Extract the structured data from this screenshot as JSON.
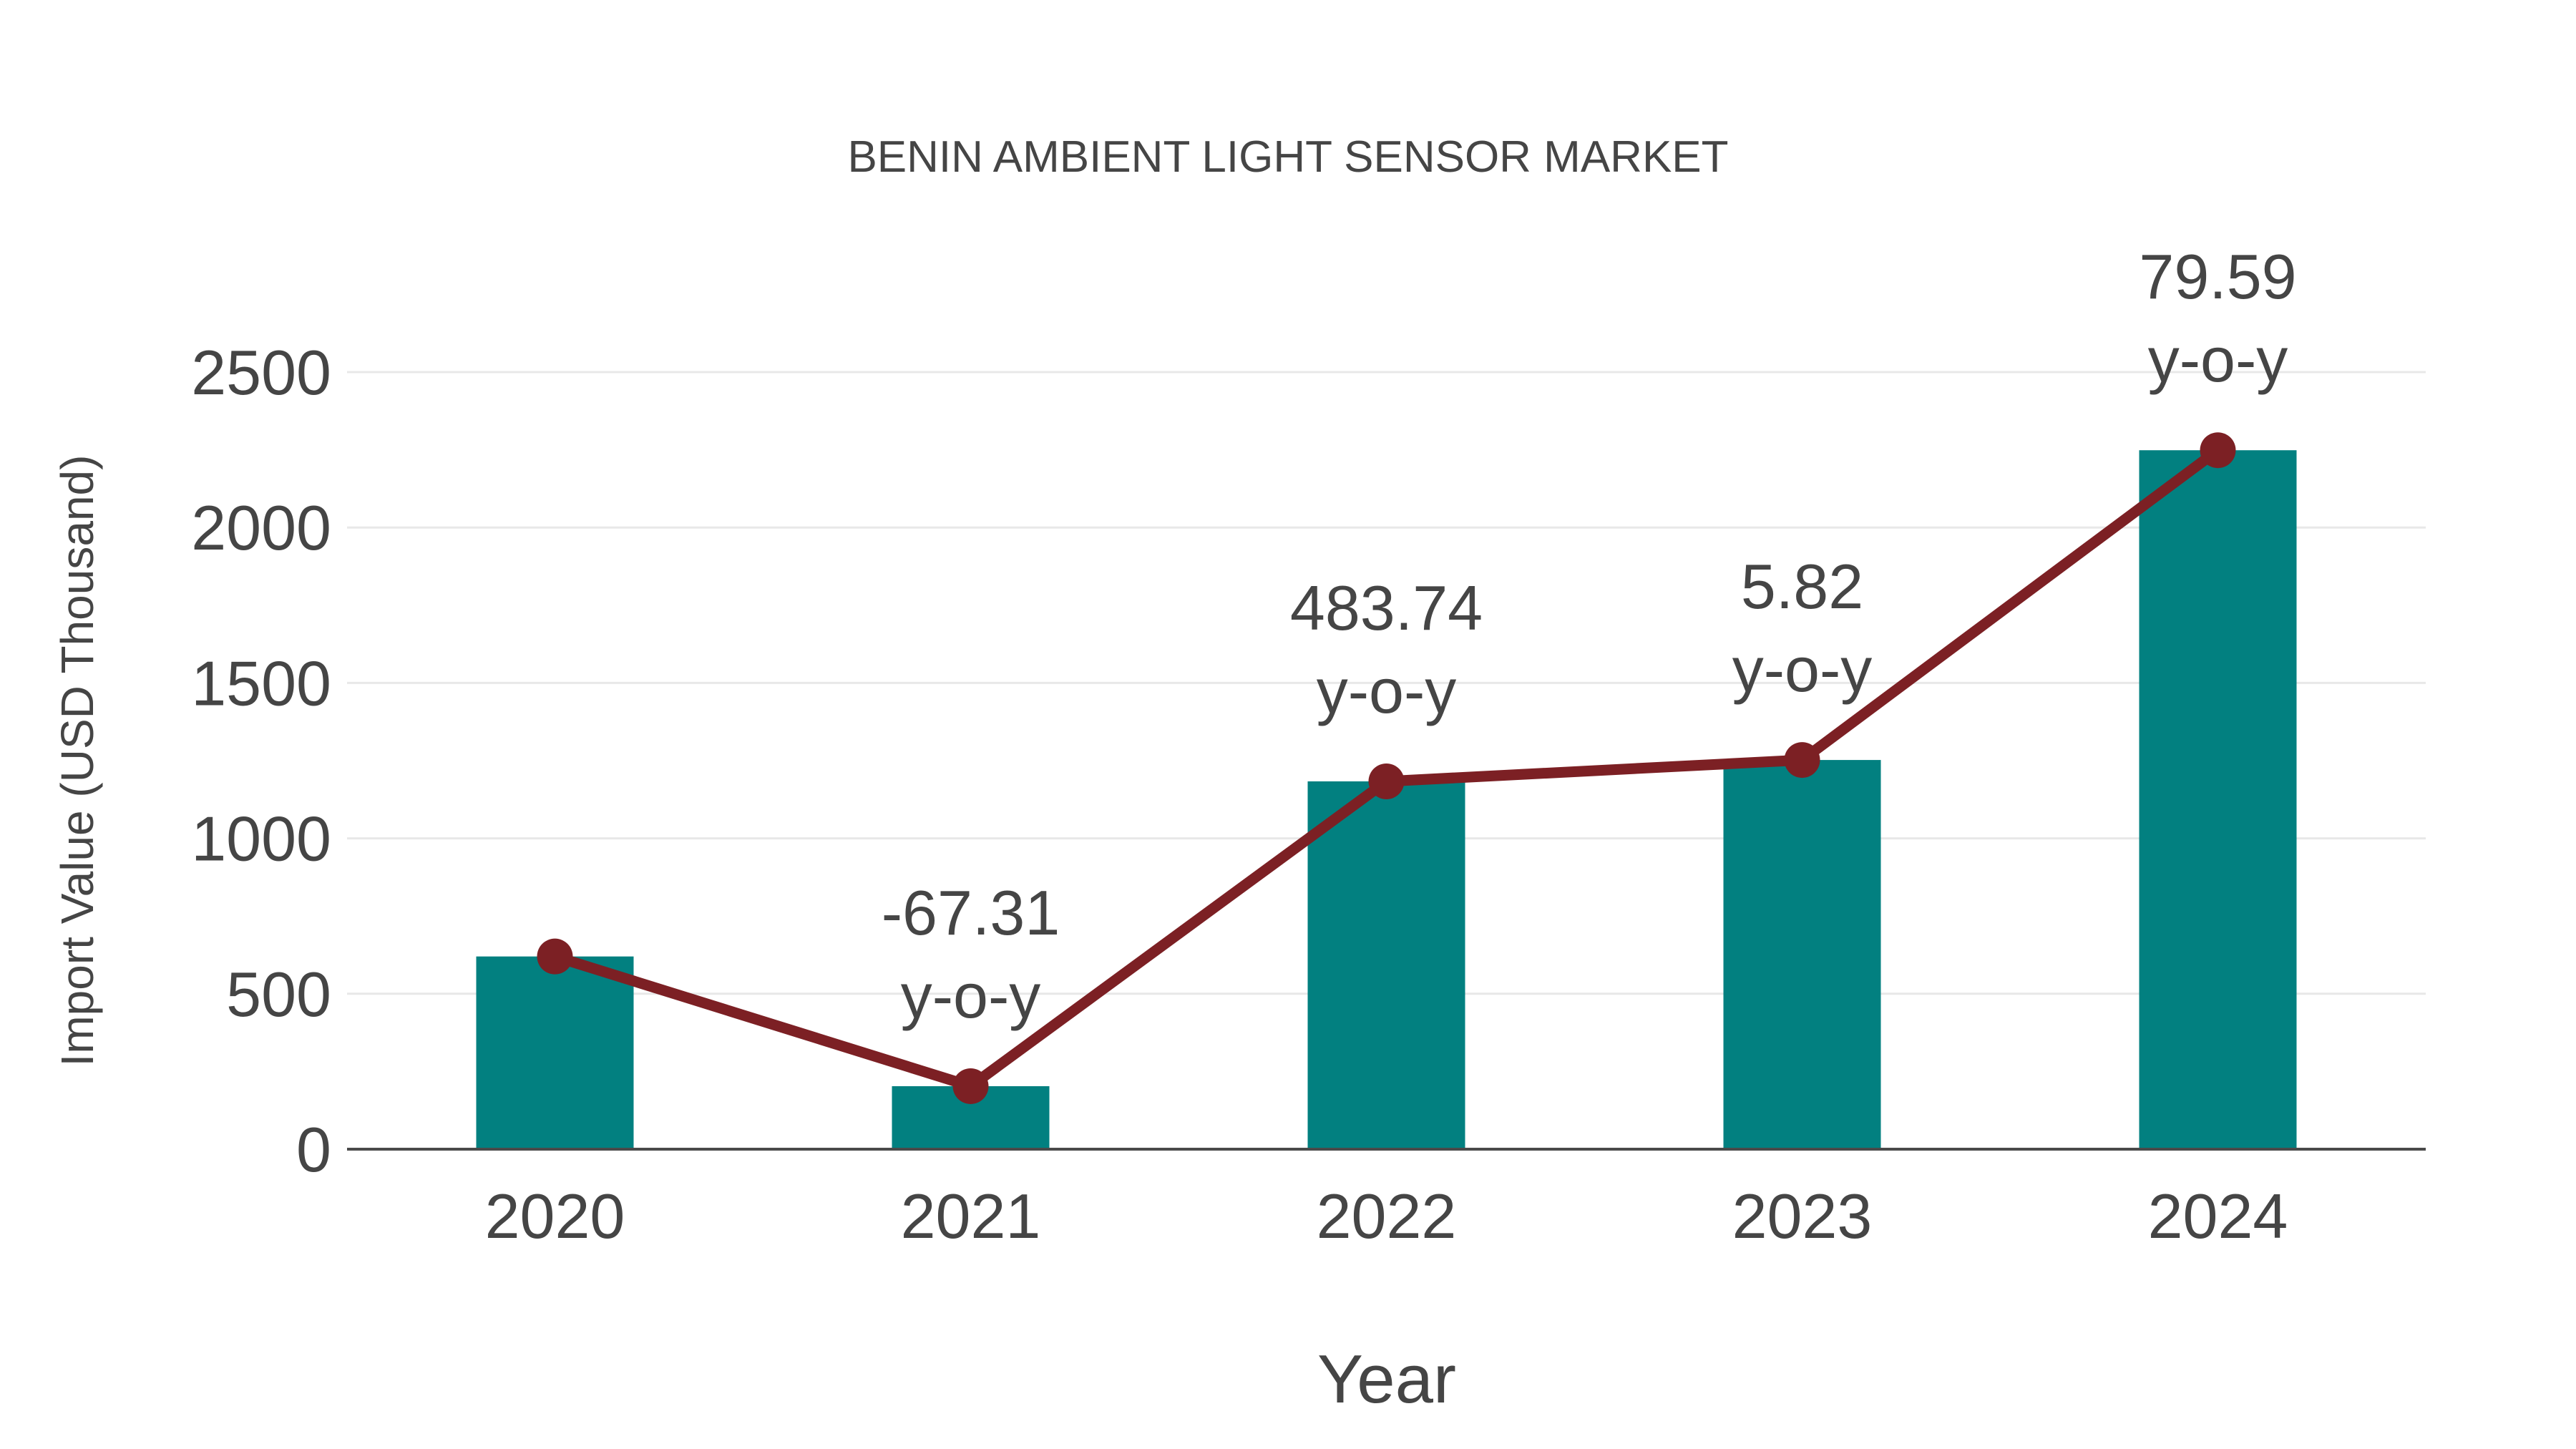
{
  "chart_data": {
    "type": "bar",
    "title": "BENIN AMBIENT LIGHT SENSOR MARKET",
    "xlabel": "Year",
    "ylabel": "Import Value (USD Thousand)",
    "categories": [
      "2020",
      "2021",
      "2022",
      "2023",
      "2024"
    ],
    "series": [
      {
        "role": "bars",
        "type": "bar",
        "values": [
          620,
          202.7,
          1183.3,
          1252.1,
          2248.6
        ]
      },
      {
        "role": "trend-line-with-markers",
        "type": "line",
        "values": [
          620,
          202.7,
          1183.3,
          1252.1,
          2248.6
        ]
      }
    ],
    "annotations": [
      {
        "category": "2021",
        "value_label": "-67.31",
        "suffix": "y-o-y"
      },
      {
        "category": "2022",
        "value_label": "483.74",
        "suffix": "y-o-y"
      },
      {
        "category": "2023",
        "value_label": "5.82",
        "suffix": "y-o-y"
      },
      {
        "category": "2024",
        "value_label": "79.59",
        "suffix": "y-o-y"
      }
    ],
    "y_ticks": [
      0,
      500,
      1000,
      1500,
      2000,
      2500
    ],
    "ylim": [
      0,
      2500
    ],
    "grid": true,
    "legend": false,
    "colors": {
      "bar": "#028080",
      "line": "#7C2024",
      "marker": "#7C2024",
      "grid": "#E8E8E8",
      "axis_line": "#4A4A4A",
      "text": "#454545",
      "background": "#FFFFFF"
    }
  }
}
